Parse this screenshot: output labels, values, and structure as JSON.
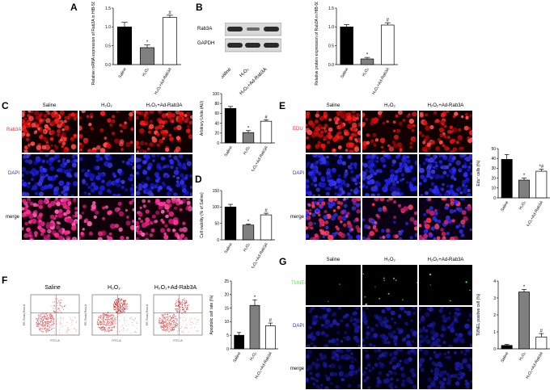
{
  "panels": {
    "A": {
      "label": "A"
    },
    "B": {
      "label": "B"
    },
    "C": {
      "label": "C"
    },
    "D": {
      "label": "D"
    },
    "E": {
      "label": "E"
    },
    "F": {
      "label": "F"
    },
    "G": {
      "label": "G"
    }
  },
  "groups": {
    "saline": "Saline",
    "h2o2": "H₂O₂",
    "h2o2_ad": "H₂O₂+Ad-Rab3A"
  },
  "blot": {
    "rab3a": "Rab3A",
    "gapdh": "GAPDH"
  },
  "rows": {
    "c_rab3a": "Rab3A",
    "c_dapi": "DAPI",
    "c_merge": "merge",
    "e_edu": "EDU",
    "e_dapi": "DAPI",
    "e_merge": "merge",
    "g_tunel": "TUNEL",
    "g_dapi": "DAPI",
    "g_merge": "merge"
  },
  "colors": {
    "red": "#ff2a2a",
    "blue": "#2a2aff",
    "green": "#2bff2b",
    "magenta": "#ff33aa"
  },
  "chart_data": [
    {
      "id": "A",
      "type": "bar",
      "categories": [
        "Saline",
        "H₂O₂",
        "H₂O₂+Ad-Rab3A"
      ],
      "values": [
        1.0,
        0.45,
        1.25
      ],
      "errors": [
        0.12,
        0.07,
        0.06
      ],
      "sig": [
        "",
        "*",
        "#"
      ],
      "ylabel": "Relative mRNA expression of Rab3A in HIB-5C-1 cells",
      "ylim": [
        0,
        1.5
      ],
      "yticks": [
        "0.0",
        "0.5",
        "1.0",
        "1.5"
      ]
    },
    {
      "id": "B",
      "type": "bar",
      "categories": [
        "Saline",
        "H₂O₂",
        "H₂O₂+Ad-Rab3A"
      ],
      "values": [
        1.0,
        0.15,
        1.05
      ],
      "errors": [
        0.06,
        0.04,
        0.06
      ],
      "sig": [
        "",
        "*",
        "#"
      ],
      "ylabel": "Relative protein expression of Rab3A in HIB-5C-1 cells",
      "ylim": [
        0,
        1.5
      ],
      "yticks": [
        "0.0",
        "0.5",
        "1.0",
        "1.5"
      ]
    },
    {
      "id": "C",
      "type": "bar",
      "categories": [
        "Saline",
        "H₂O₂",
        "H₂O₂+Ad-Rab3A"
      ],
      "values": [
        70,
        21,
        44
      ],
      "errors": [
        4,
        4,
        3
      ],
      "sig": [
        "",
        "*",
        "#"
      ],
      "ylabel": "Arbitrary Units (AU)",
      "ylim": [
        0,
        100
      ],
      "yticks": [
        "0",
        "20",
        "40",
        "60",
        "80",
        "100"
      ]
    },
    {
      "id": "D",
      "type": "bar",
      "categories": [
        "Saline",
        "H₂O₂",
        "H₂O₂+Ad-Rab3A"
      ],
      "values": [
        100,
        45,
        76
      ],
      "errors": [
        8,
        3,
        5
      ],
      "sig": [
        "",
        "*",
        "#"
      ],
      "ylabel": "Cell viability (% of Saline)",
      "ylim": [
        0,
        150
      ],
      "yticks": [
        "0",
        "50",
        "100",
        "150"
      ]
    },
    {
      "id": "E",
      "type": "bar",
      "categories": [
        "Saline",
        "H₂O₂",
        "H₂O₂+Ad-Rab3A"
      ],
      "values": [
        39,
        18,
        27
      ],
      "errors": [
        5,
        2,
        2
      ],
      "sig": [
        "",
        "*",
        "*#"
      ],
      "ylabel": "Edu⁺ cells (%)",
      "ylim": [
        0,
        50
      ],
      "yticks": [
        "0",
        "10",
        "20",
        "30",
        "40",
        "50"
      ]
    },
    {
      "id": "F",
      "type": "bar",
      "categories": [
        "Saline",
        "H₂O₂",
        "H₂O₂+Ad-Rab3A"
      ],
      "values": [
        5,
        16,
        8.5
      ],
      "errors": [
        1,
        2,
        1
      ],
      "sig": [
        "",
        "*",
        "#"
      ],
      "ylabel": "Apoptotic cell rate (%)",
      "ylim": [
        0,
        25
      ],
      "yticks": [
        "0",
        "5",
        "10",
        "15",
        "20",
        "25"
      ]
    },
    {
      "id": "G",
      "type": "bar",
      "categories": [
        "Saline",
        "H₂O₂",
        "H₂O₂+Ad-Rab3A"
      ],
      "values": [
        0.2,
        3.35,
        0.7
      ],
      "errors": [
        0.06,
        0.15,
        0.2
      ],
      "sig": [
        "",
        "*",
        "#"
      ],
      "ylabel": "TUNEL positive cell (%)",
      "ylim": [
        0,
        4
      ],
      "yticks": [
        "0",
        "1",
        "2",
        "3",
        "4"
      ]
    }
  ],
  "flow": {
    "xaxis": "FITC-A",
    "yaxis": "PE-Texas Red-A"
  }
}
